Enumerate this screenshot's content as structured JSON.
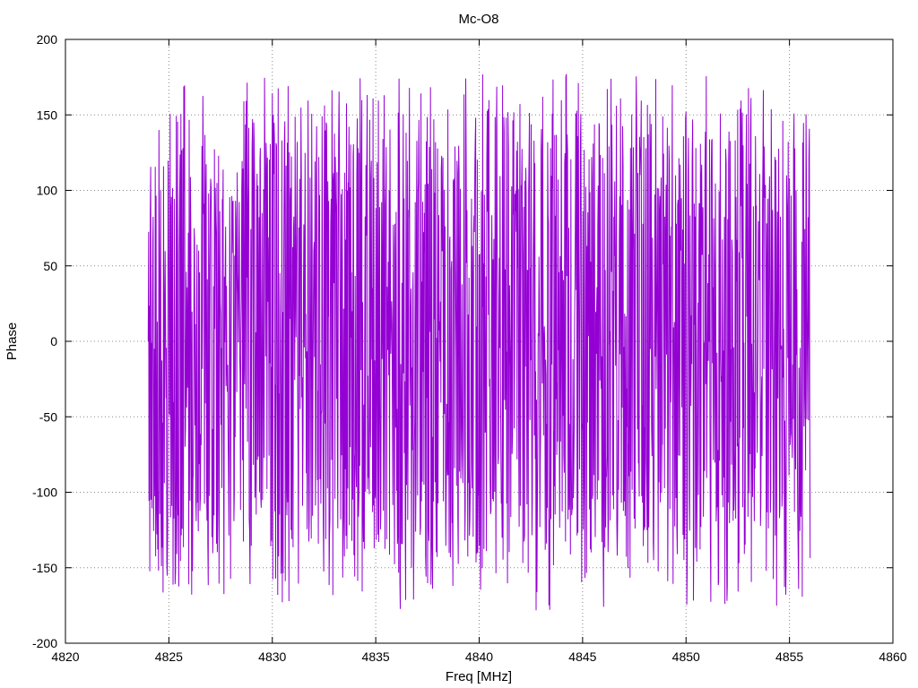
{
  "chart_data": {
    "type": "line",
    "title": "Mc-O8",
    "xlabel": "Freq [MHz]",
    "ylabel": "Phase",
    "xlim": [
      4820,
      4860
    ],
    "ylim": [
      -200,
      200
    ],
    "xticks": [
      4820,
      4825,
      4830,
      4835,
      4840,
      4845,
      4850,
      4855,
      4860
    ],
    "yticks": [
      -200,
      -150,
      -100,
      -50,
      0,
      50,
      100,
      150,
      200
    ],
    "grid": true,
    "series": [
      {
        "color": "#9400d3",
        "x_range": [
          4824,
          4856
        ],
        "points": 1600,
        "y_min": -180,
        "y_max": 180,
        "description": "rapidly oscillating phase wrapping between -180 and 180"
      }
    ]
  }
}
